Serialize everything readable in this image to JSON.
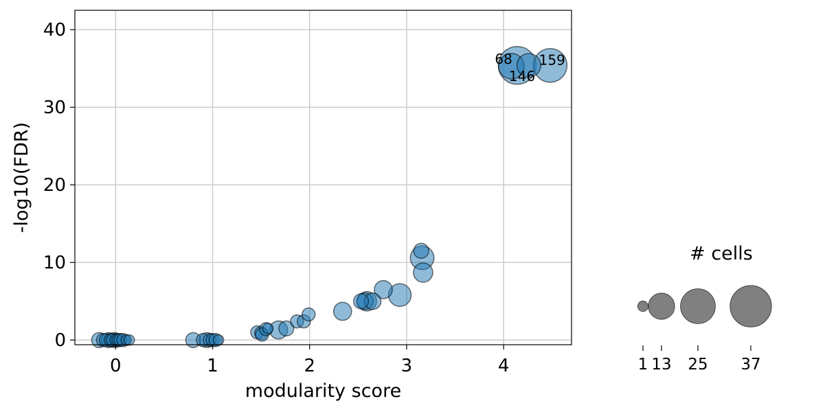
{
  "chart_data": {
    "type": "scatter",
    "xlabel": "modularity score",
    "ylabel": "-log10(FDR)",
    "xlim": [
      -0.42,
      4.7
    ],
    "ylim": [
      -0.6,
      42.5
    ],
    "xticks": [
      0,
      1,
      2,
      3,
      4
    ],
    "yticks": [
      0,
      10,
      20,
      30,
      40
    ],
    "grid": true,
    "marker_color": "#1f77b4",
    "marker_alpha": 0.5,
    "marker_edge": "#000000",
    "points": [
      {
        "x": -0.17,
        "y": 0.0,
        "cells": 3
      },
      {
        "x": -0.13,
        "y": 0.0,
        "cells": 2
      },
      {
        "x": -0.1,
        "y": 0.0,
        "cells": 2
      },
      {
        "x": -0.07,
        "y": 0.0,
        "cells": 3
      },
      {
        "x": -0.05,
        "y": 0.0,
        "cells": 2
      },
      {
        "x": -0.03,
        "y": 0.0,
        "cells": 2
      },
      {
        "x": -0.01,
        "y": 0.0,
        "cells": 3
      },
      {
        "x": 0.01,
        "y": 0.0,
        "cells": 2
      },
      {
        "x": 0.03,
        "y": 0.0,
        "cells": 2
      },
      {
        "x": 0.05,
        "y": 0.0,
        "cells": 2
      },
      {
        "x": 0.08,
        "y": 0.0,
        "cells": 2
      },
      {
        "x": 0.11,
        "y": 0.0,
        "cells": 1
      },
      {
        "x": 0.14,
        "y": 0.0,
        "cells": 1
      },
      {
        "x": 0.8,
        "y": 0.0,
        "cells": 3
      },
      {
        "x": 0.9,
        "y": 0.0,
        "cells": 2
      },
      {
        "x": 0.94,
        "y": 0.0,
        "cells": 3
      },
      {
        "x": 0.97,
        "y": 0.0,
        "cells": 2
      },
      {
        "x": 1.0,
        "y": 0.0,
        "cells": 2
      },
      {
        "x": 1.03,
        "y": 0.0,
        "cells": 2
      },
      {
        "x": 1.06,
        "y": 0.0,
        "cells": 1
      },
      {
        "x": 1.46,
        "y": 1.0,
        "cells": 2
      },
      {
        "x": 1.5,
        "y": 0.9,
        "cells": 2
      },
      {
        "x": 1.51,
        "y": 0.7,
        "cells": 2
      },
      {
        "x": 1.55,
        "y": 1.4,
        "cells": 2
      },
      {
        "x": 1.57,
        "y": 1.5,
        "cells": 1
      },
      {
        "x": 1.68,
        "y": 1.3,
        "cells": 5
      },
      {
        "x": 1.76,
        "y": 1.5,
        "cells": 3
      },
      {
        "x": 1.87,
        "y": 2.4,
        "cells": 2
      },
      {
        "x": 1.94,
        "y": 2.4,
        "cells": 2
      },
      {
        "x": 1.99,
        "y": 3.3,
        "cells": 2
      },
      {
        "x": 2.34,
        "y": 3.7,
        "cells": 5
      },
      {
        "x": 2.53,
        "y": 5.0,
        "cells": 3
      },
      {
        "x": 2.57,
        "y": 5.0,
        "cells": 4
      },
      {
        "x": 2.59,
        "y": 5.0,
        "cells": 6
      },
      {
        "x": 2.65,
        "y": 5.0,
        "cells": 4
      },
      {
        "x": 2.76,
        "y": 6.5,
        "cells": 5
      },
      {
        "x": 2.93,
        "y": 5.8,
        "cells": 9
      },
      {
        "x": 3.15,
        "y": 11.5,
        "cells": 3
      },
      {
        "x": 3.16,
        "y": 10.6,
        "cells": 10
      },
      {
        "x": 3.17,
        "y": 8.7,
        "cells": 6
      },
      {
        "x": 4.08,
        "y": 35.3,
        "cells": 12
      },
      {
        "x": 4.14,
        "y": 35.4,
        "cells": 30
      },
      {
        "x": 4.26,
        "y": 35.4,
        "cells": 10
      },
      {
        "x": 4.48,
        "y": 35.4,
        "cells": 23
      }
    ],
    "annotations": [
      {
        "text": "68",
        "x": 4.0,
        "y": 36.2,
        "anchor": "middle"
      },
      {
        "text": "146",
        "x": 4.19,
        "y": 34.0,
        "anchor": "middle"
      },
      {
        "text": "159",
        "x": 4.5,
        "y": 36.1,
        "anchor": "middle"
      }
    ],
    "size_legend": {
      "title": "# cells",
      "color": "#808080",
      "values": [
        1,
        13,
        25,
        37
      ]
    }
  }
}
